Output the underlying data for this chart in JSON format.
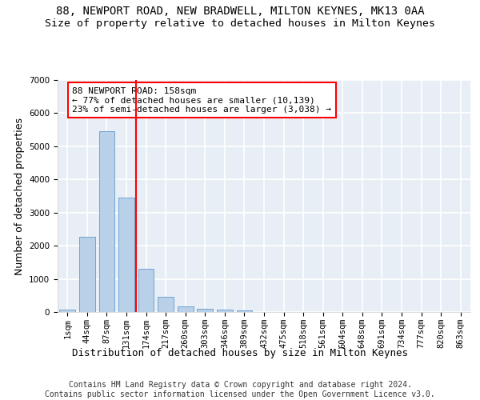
{
  "title": "88, NEWPORT ROAD, NEW BRADWELL, MILTON KEYNES, MK13 0AA",
  "subtitle": "Size of property relative to detached houses in Milton Keynes",
  "xlabel": "Distribution of detached houses by size in Milton Keynes",
  "ylabel": "Number of detached properties",
  "footnote": "Contains HM Land Registry data © Crown copyright and database right 2024.\nContains public sector information licensed under the Open Government Licence v3.0.",
  "bar_labels": [
    "1sqm",
    "44sqm",
    "87sqm",
    "131sqm",
    "174sqm",
    "217sqm",
    "260sqm",
    "303sqm",
    "346sqm",
    "389sqm",
    "432sqm",
    "475sqm",
    "518sqm",
    "561sqm",
    "604sqm",
    "648sqm",
    "691sqm",
    "734sqm",
    "777sqm",
    "820sqm",
    "863sqm"
  ],
  "bar_values": [
    75,
    2280,
    5460,
    3440,
    1310,
    470,
    160,
    100,
    70,
    45,
    0,
    0,
    0,
    0,
    0,
    0,
    0,
    0,
    0,
    0,
    0
  ],
  "bar_color": "#b8d0e8",
  "bar_edge_color": "#6699cc",
  "vline_color": "red",
  "annotation_text": "88 NEWPORT ROAD: 158sqm\n← 77% of detached houses are smaller (10,139)\n23% of semi-detached houses are larger (3,038) →",
  "annotation_box_color": "white",
  "annotation_box_edge": "red",
  "ylim": [
    0,
    7000
  ],
  "background_color": "#e8eef5",
  "grid_color": "white",
  "title_fontsize": 10,
  "subtitle_fontsize": 9.5,
  "axis_label_fontsize": 9,
  "tick_fontsize": 7.5,
  "footnote_fontsize": 7,
  "annotation_fontsize": 8
}
